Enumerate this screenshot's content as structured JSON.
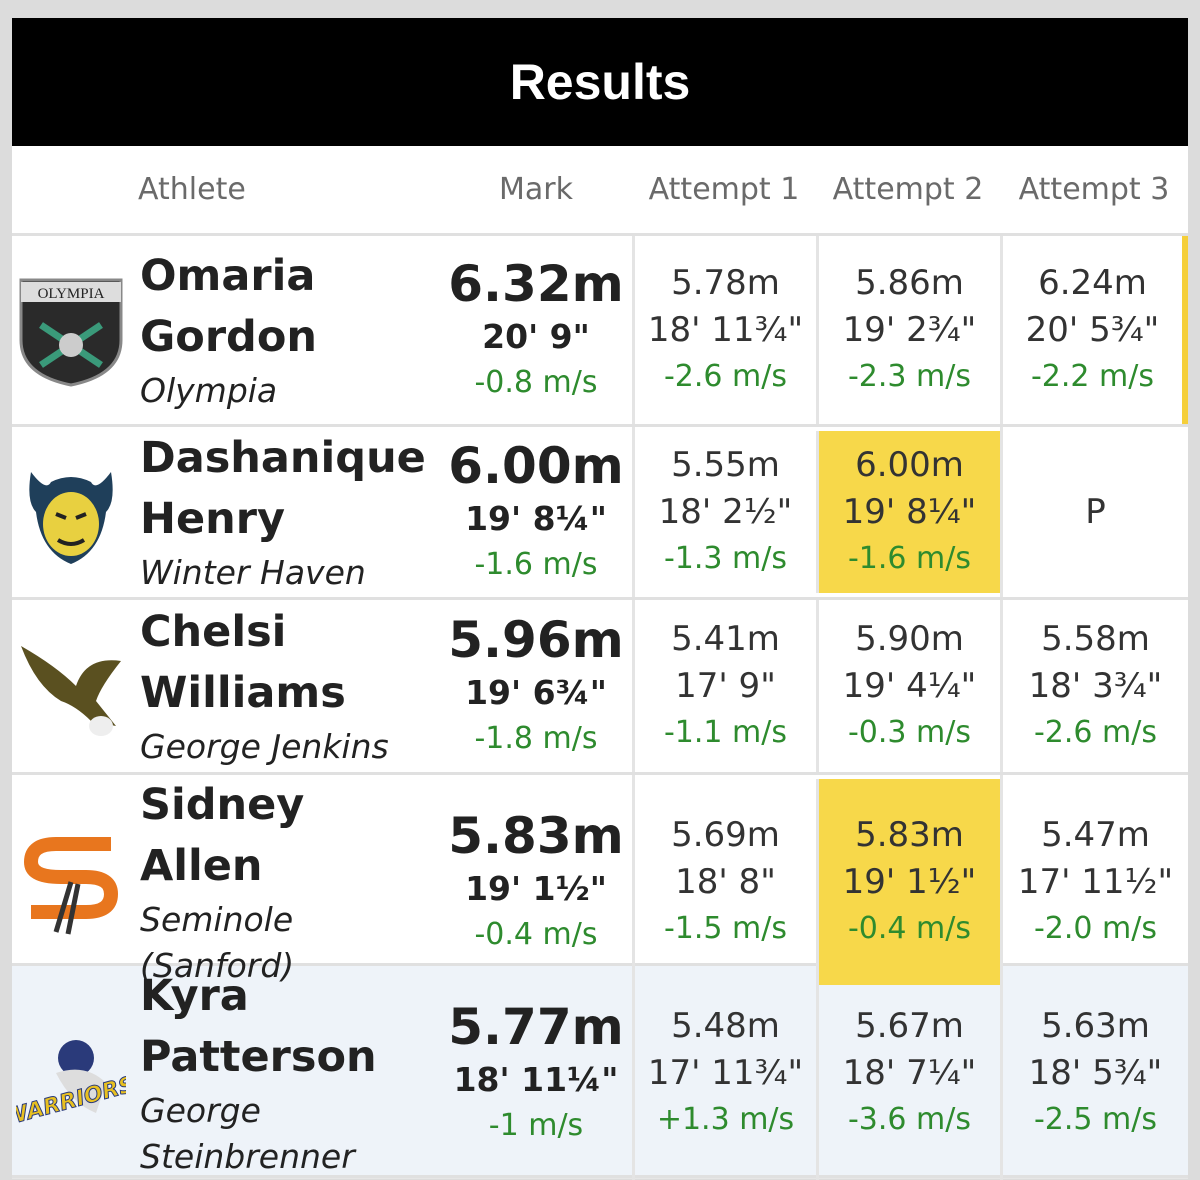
{
  "header": {
    "title": "Results"
  },
  "table": {
    "columns": [
      "Athlete",
      "Mark",
      "Attempt 1",
      "Attempt 2",
      "Attempt 3"
    ],
    "rows": [
      {
        "logo": "OLYMPIA",
        "name": "Omaria Gordon",
        "school": "Olympia",
        "mark": {
          "metric": "6.32m",
          "imperial": "20' 9\"",
          "wind": "-0.8 m/s"
        },
        "attempts": [
          {
            "metric": "5.78m",
            "imperial": "18' 11¾\"",
            "wind": "-2.6 m/s"
          },
          {
            "metric": "5.86m",
            "imperial": "19' 2¾\"",
            "wind": "-2.3 m/s"
          },
          {
            "metric": "6.24m",
            "imperial": "20' 5¾\"",
            "wind": "-2.2 m/s"
          }
        ]
      },
      {
        "name": "Dashanique Henry",
        "school": "Winter Haven",
        "mark": {
          "metric": "6.00m",
          "imperial": "19' 8¼\"",
          "wind": "-1.6 m/s"
        },
        "attempts": [
          {
            "metric": "5.55m",
            "imperial": "18' 2½\"",
            "wind": "-1.3 m/s"
          },
          {
            "metric": "6.00m",
            "imperial": "19' 8¼\"",
            "wind": "-1.6 m/s",
            "highlight": true
          },
          {
            "mark": "P"
          }
        ]
      },
      {
        "name": "Chelsi Williams",
        "school": "George Jenkins",
        "mark": {
          "metric": "5.96m",
          "imperial": "19' 6¾\"",
          "wind": "-1.8 m/s"
        },
        "attempts": [
          {
            "metric": "5.41m",
            "imperial": "17' 9\"",
            "wind": "-1.1 m/s"
          },
          {
            "metric": "5.90m",
            "imperial": "19' 4¼\"",
            "wind": "-0.3 m/s"
          },
          {
            "metric": "5.58m",
            "imperial": "18' 3¾\"",
            "wind": "-2.6 m/s"
          }
        ]
      },
      {
        "name": "Sidney Allen",
        "school": "Seminole (Sanford)",
        "mark": {
          "metric": "5.83m",
          "imperial": "19' 1½\"",
          "wind": "-0.4 m/s"
        },
        "attempts": [
          {
            "metric": "5.69m",
            "imperial": "18' 8\"",
            "wind": "-1.5 m/s"
          },
          {
            "metric": "5.83m",
            "imperial": "19' 1½\"",
            "wind": "-0.4 m/s",
            "highlight": true
          },
          {
            "metric": "5.47m",
            "imperial": "17' 11½\"",
            "wind": "-2.0 m/s"
          }
        ]
      },
      {
        "logo": "WARRIORS",
        "name": "Kyra Patterson",
        "school": "George Steinbrenner",
        "mark": {
          "metric": "5.77m",
          "imperial": "18' 11¼\"",
          "wind": "-1 m/s"
        },
        "attempts": [
          {
            "metric": "5.48m",
            "imperial": "17' 11¾\"",
            "wind": "+1.3 m/s"
          },
          {
            "metric": "5.67m",
            "imperial": "18' 7¼\"",
            "wind": "-3.6 m/s"
          },
          {
            "metric": "5.63m",
            "imperial": "18' 5¾\"",
            "wind": "-2.5 m/s"
          }
        ]
      }
    ]
  }
}
